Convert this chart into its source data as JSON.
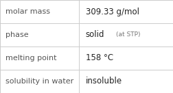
{
  "rows": [
    {
      "label": "molar mass",
      "value": "309.33 g/mol",
      "suffix": null
    },
    {
      "label": "phase",
      "value": "solid",
      "suffix": "(at STP)"
    },
    {
      "label": "melting point",
      "value": "158 °C",
      "suffix": null
    },
    {
      "label": "solubility in water",
      "value": "insoluble",
      "suffix": null
    }
  ],
  "bg_color": "#ffffff",
  "border_color": "#cccccc",
  "label_color": "#555555",
  "value_color": "#222222",
  "suffix_color": "#777777",
  "label_fontsize": 8.0,
  "value_fontsize": 8.5,
  "suffix_fontsize": 6.5,
  "col_split": 0.455
}
